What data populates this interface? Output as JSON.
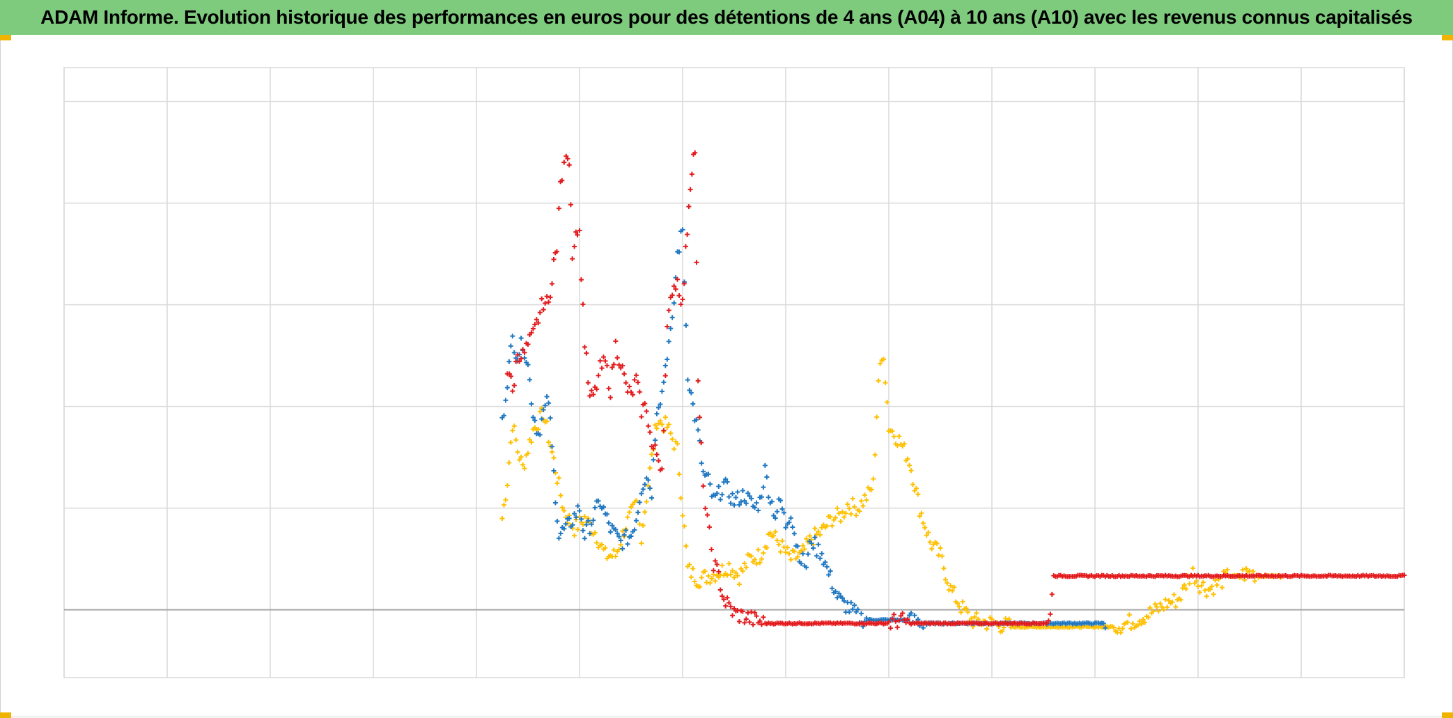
{
  "title": "ADAM Informe. Evolution historique des performances en euros pour des détentions de 4 ans (A04) à 10 ans (A10) avec les revenus connus capitalisés",
  "colors": {
    "title_bg": "#7ecb7e",
    "grid": "#d9d9d9",
    "zero_line": "#a6a6a6",
    "corner_marks": "#f0b400"
  },
  "chart_data": {
    "type": "scatter",
    "marker": "plus",
    "grid": true,
    "legend": "none",
    "xlabel": "",
    "ylabel": "",
    "xlim": [
      0,
      13
    ],
    "ylim": [
      -2,
      16
    ],
    "x_gridlines": [
      0,
      1,
      2,
      3,
      4,
      5,
      6,
      7,
      8,
      9,
      10,
      11,
      12,
      13
    ],
    "y_gridlines": [
      0,
      3,
      6,
      9,
      12,
      15
    ],
    "series": [
      {
        "color": "#ffc000",
        "points": [
          [
            4.25,
            2.7
          ],
          [
            4.3,
            3.8
          ],
          [
            4.35,
            5.5
          ],
          [
            4.4,
            4.7
          ],
          [
            4.45,
            4.2
          ],
          [
            4.55,
            5.3
          ],
          [
            4.65,
            5.8
          ],
          [
            4.75,
            4.4
          ],
          [
            4.85,
            2.9
          ],
          [
            4.95,
            2.4
          ],
          [
            5.05,
            2.7
          ],
          [
            5.15,
            2.3
          ],
          [
            5.25,
            1.6
          ],
          [
            5.35,
            1.6
          ],
          [
            5.45,
            2.5
          ],
          [
            5.55,
            3.1
          ],
          [
            5.6,
            2.2
          ],
          [
            5.75,
            5.6
          ],
          [
            5.85,
            5.4
          ],
          [
            5.95,
            4.7
          ],
          [
            6.05,
            1.2
          ],
          [
            6.15,
            0.9
          ],
          [
            6.25,
            1.0
          ],
          [
            6.35,
            1.1
          ],
          [
            6.45,
            1.3
          ],
          [
            6.55,
            1.0
          ],
          [
            6.65,
            1.5
          ],
          [
            6.75,
            1.6
          ],
          [
            6.85,
            2.3
          ],
          [
            6.95,
            1.9
          ],
          [
            7.05,
            1.5
          ],
          [
            7.15,
            1.6
          ],
          [
            7.25,
            2.1
          ],
          [
            7.35,
            2.3
          ],
          [
            7.45,
            2.7
          ],
          [
            7.55,
            2.8
          ],
          [
            7.6,
            3.1
          ],
          [
            7.7,
            3.0
          ],
          [
            7.8,
            3.4
          ],
          [
            7.85,
            3.7
          ],
          [
            7.9,
            6.8
          ],
          [
            7.95,
            7.6
          ],
          [
            8.0,
            5.4
          ],
          [
            8.1,
            5.0
          ],
          [
            8.2,
            4.4
          ],
          [
            8.3,
            3.0
          ],
          [
            8.4,
            2.0
          ],
          [
            8.5,
            1.6
          ],
          [
            8.6,
            0.6
          ],
          [
            8.7,
            0.1
          ],
          [
            8.8,
            -0.3
          ],
          [
            9.0,
            -0.4
          ],
          [
            9.2,
            -0.5
          ],
          [
            9.4,
            -0.5
          ],
          [
            9.6,
            -0.5
          ],
          [
            9.8,
            -0.5
          ],
          [
            10.0,
            -0.5
          ],
          [
            10.2,
            -0.5
          ],
          [
            10.4,
            -0.3
          ],
          [
            10.6,
            0.0
          ],
          [
            10.7,
            0.2
          ],
          [
            10.8,
            0.3
          ],
          [
            10.85,
            0.5
          ],
          [
            10.9,
            0.9
          ],
          [
            10.95,
            1.1
          ],
          [
            11.0,
            0.8
          ],
          [
            11.1,
            0.6
          ],
          [
            11.2,
            0.8
          ],
          [
            11.3,
            1.0
          ],
          [
            11.4,
            1.0
          ],
          [
            11.5,
            1.1
          ],
          [
            11.6,
            1.0
          ],
          [
            11.7,
            1.0
          ],
          [
            11.8,
            1.0
          ]
        ]
      },
      {
        "color": "#1f77c2",
        "points": [
          [
            4.25,
            5.5
          ],
          [
            4.3,
            6.8
          ],
          [
            4.35,
            8.0
          ],
          [
            4.4,
            7.5
          ],
          [
            4.45,
            7.9
          ],
          [
            4.5,
            7.2
          ],
          [
            4.55,
            5.8
          ],
          [
            4.6,
            5.2
          ],
          [
            4.65,
            5.8
          ],
          [
            4.7,
            6.2
          ],
          [
            4.75,
            4.0
          ],
          [
            4.8,
            2.2
          ],
          [
            4.9,
            2.5
          ],
          [
            5.0,
            3.0
          ],
          [
            5.05,
            2.2
          ],
          [
            5.1,
            2.5
          ],
          [
            5.2,
            3.2
          ],
          [
            5.3,
            2.4
          ],
          [
            5.4,
            2.0
          ],
          [
            5.5,
            2.2
          ],
          [
            5.55,
            2.7
          ],
          [
            5.6,
            3.6
          ],
          [
            5.65,
            4.0
          ],
          [
            5.7,
            3.5
          ],
          [
            5.75,
            6.0
          ],
          [
            5.8,
            6.4
          ],
          [
            5.85,
            7.6
          ],
          [
            5.9,
            8.4
          ],
          [
            5.95,
            10.5
          ],
          [
            6.0,
            11.2
          ],
          [
            6.05,
            7.0
          ],
          [
            6.1,
            6.0
          ],
          [
            6.15,
            5.2
          ],
          [
            6.2,
            4.0
          ],
          [
            6.25,
            3.8
          ],
          [
            6.3,
            3.2
          ],
          [
            6.35,
            3.4
          ],
          [
            6.4,
            3.7
          ],
          [
            6.5,
            3.2
          ],
          [
            6.6,
            3.4
          ],
          [
            6.7,
            3.0
          ],
          [
            6.75,
            3.2
          ],
          [
            6.8,
            4.1
          ],
          [
            6.85,
            3.3
          ],
          [
            6.9,
            2.8
          ],
          [
            6.95,
            3.2
          ],
          [
            7.0,
            2.5
          ],
          [
            7.05,
            2.9
          ],
          [
            7.1,
            2.0
          ],
          [
            7.15,
            1.5
          ],
          [
            7.2,
            1.3
          ],
          [
            7.25,
            2.1
          ],
          [
            7.3,
            1.8
          ],
          [
            7.35,
            1.7
          ],
          [
            7.4,
            1.2
          ],
          [
            7.45,
            0.8
          ],
          [
            7.5,
            0.4
          ],
          [
            7.55,
            0.2
          ],
          [
            7.6,
            0.1
          ],
          [
            7.7,
            -0.2
          ],
          [
            7.8,
            -0.3
          ],
          [
            7.9,
            -0.3
          ],
          [
            8.0,
            -0.3
          ],
          [
            8.2,
            -0.3
          ],
          [
            8.4,
            -0.4
          ],
          [
            8.6,
            -0.4
          ],
          [
            8.8,
            -0.4
          ],
          [
            9.0,
            -0.4
          ],
          [
            9.2,
            -0.4
          ],
          [
            9.4,
            -0.4
          ],
          [
            9.6,
            -0.4
          ],
          [
            9.8,
            -0.4
          ],
          [
            10.0,
            -0.4
          ],
          [
            10.1,
            -0.4
          ]
        ]
      },
      {
        "color": "#e31a1c",
        "points": [
          [
            4.3,
            7.1
          ],
          [
            4.32,
            7.0
          ],
          [
            4.35,
            6.4
          ],
          [
            4.4,
            7.6
          ],
          [
            4.45,
            7.5
          ],
          [
            4.55,
            8.1
          ],
          [
            4.65,
            9.1
          ],
          [
            4.7,
            9.0
          ],
          [
            4.75,
            10.3
          ],
          [
            4.78,
            10.5
          ],
          [
            4.8,
            12.0
          ],
          [
            4.83,
            12.8
          ],
          [
            4.85,
            13.0
          ],
          [
            4.87,
            13.6
          ],
          [
            4.9,
            13.3
          ],
          [
            4.93,
            10.6
          ],
          [
            4.95,
            10.8
          ],
          [
            4.98,
            11.3
          ],
          [
            5.0,
            11.0
          ],
          [
            5.05,
            7.9
          ],
          [
            5.1,
            6.2
          ],
          [
            5.15,
            6.4
          ],
          [
            5.2,
            7.1
          ],
          [
            5.25,
            7.3
          ],
          [
            5.3,
            6.5
          ],
          [
            5.35,
            7.8
          ],
          [
            5.4,
            7.3
          ],
          [
            5.45,
            6.6
          ],
          [
            5.5,
            6.3
          ],
          [
            5.55,
            6.8
          ],
          [
            5.6,
            5.9
          ],
          [
            5.65,
            6.0
          ],
          [
            5.7,
            4.8
          ],
          [
            5.75,
            4.6
          ],
          [
            5.8,
            4.2
          ],
          [
            5.85,
            8.2
          ],
          [
            5.9,
            9.5
          ],
          [
            5.95,
            9.7
          ],
          [
            6.0,
            9.0
          ],
          [
            6.03,
            10.5
          ],
          [
            6.06,
            12.0
          ],
          [
            6.09,
            13.1
          ],
          [
            6.12,
            13.6
          ],
          [
            6.15,
            6.6
          ],
          [
            6.18,
            4.7
          ],
          [
            6.22,
            3.0
          ],
          [
            6.26,
            2.2
          ],
          [
            6.3,
            1.4
          ],
          [
            6.35,
            1.0
          ],
          [
            6.4,
            0.3
          ],
          [
            6.45,
            0.1
          ],
          [
            6.5,
            -0.1
          ],
          [
            6.6,
            -0.2
          ],
          [
            6.7,
            -0.3
          ],
          [
            6.8,
            -0.4
          ],
          [
            7.0,
            -0.4
          ],
          [
            7.2,
            -0.4
          ],
          [
            7.4,
            -0.4
          ],
          [
            7.6,
            -0.4
          ],
          [
            7.8,
            -0.4
          ],
          [
            8.0,
            -0.4
          ],
          [
            8.1,
            -0.3
          ],
          [
            8.2,
            -0.4
          ],
          [
            8.4,
            -0.4
          ],
          [
            8.6,
            -0.4
          ],
          [
            8.8,
            -0.4
          ],
          [
            9.0,
            -0.4
          ],
          [
            9.2,
            -0.4
          ],
          [
            9.4,
            -0.4
          ],
          [
            9.55,
            -0.4
          ],
          [
            9.6,
            1.0
          ],
          [
            9.8,
            1.0
          ],
          [
            10.0,
            1.0
          ],
          [
            10.2,
            1.0
          ],
          [
            10.4,
            1.0
          ],
          [
            10.6,
            1.0
          ],
          [
            10.8,
            1.0
          ],
          [
            11.0,
            1.0
          ],
          [
            11.2,
            1.0
          ],
          [
            11.4,
            1.0
          ],
          [
            11.6,
            1.0
          ],
          [
            11.8,
            1.0
          ],
          [
            12.0,
            1.0
          ],
          [
            12.2,
            1.0
          ],
          [
            12.4,
            1.0
          ],
          [
            12.6,
            1.0
          ],
          [
            12.8,
            1.0
          ],
          [
            13.0,
            1.0
          ]
        ]
      }
    ]
  }
}
